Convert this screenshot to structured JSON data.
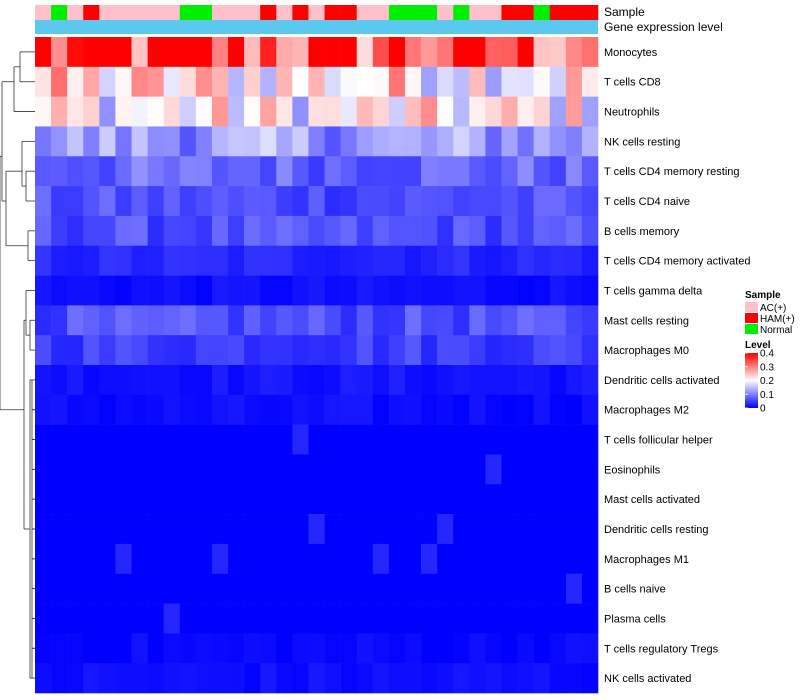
{
  "chart_data": {
    "type": "heatmap",
    "title": "",
    "annotation_labels": [
      "Sample",
      "Gene expression level"
    ],
    "rows": [
      "Monocytes",
      "T cells CD8",
      "Neutrophils",
      "NK cells resting",
      "T cells CD4 memory resting",
      "T cells CD4 naive",
      "B cells memory",
      "T cells CD4 memory activated",
      "T cells gamma delta",
      "Mast cells resting",
      "Macrophages M0",
      "Dendritic cells activated",
      "Macrophages M2",
      "T cells follicular helper",
      "Eosinophils",
      "Mast cells activated",
      "Dendritic cells resting",
      "Macrophages M1",
      "B cells naive",
      "Plasma cells",
      "T cells regulatory  Tregs",
      "NK cells activated"
    ],
    "samples": [
      "AC(+)",
      "Normal",
      "AC(+)",
      "HAM(+)",
      "AC(+)",
      "AC(+)",
      "AC(+)",
      "AC(+)",
      "AC(+)",
      "Normal",
      "Normal",
      "AC(+)",
      "AC(+)",
      "AC(+)",
      "HAM(+)",
      "AC(+)",
      "HAM(+)",
      "AC(+)",
      "HAM(+)",
      "HAM(+)",
      "AC(+)",
      "AC(+)",
      "Normal",
      "Normal",
      "Normal",
      "AC(+)",
      "Normal",
      "AC(+)",
      "AC(+)",
      "HAM(+)",
      "HAM(+)",
      "Normal",
      "HAM(+)",
      "HAM(+)",
      "HAM(+)"
    ],
    "row_means": [
      0.35,
      0.22,
      0.2,
      0.12,
      0.08,
      0.06,
      0.06,
      0.03,
      0.01,
      0.06,
      0.05,
      0.015,
      0.008,
      0.0,
      0.0,
      0.0,
      0.0,
      0.0,
      0.0,
      0.0,
      0.005,
      0.01
    ],
    "colorbar": {
      "title": "Level",
      "range": [
        0,
        0.4
      ],
      "ticks": [
        0.4,
        0.3,
        0.2,
        0.1,
        0
      ],
      "tick_labels": [
        "0.4",
        "0.3",
        "0.2",
        "0.1",
        "0"
      ],
      "low_color": "#0000ff",
      "mid_color": "#ffffff",
      "high_color": "#ff0000",
      "mid_value": 0.2
    },
    "legend": {
      "title": "Sample",
      "entries": [
        {
          "label": "AC(+)",
          "color": "#ffc0cb"
        },
        {
          "label": "HAM(+)",
          "color": "#ff0000"
        },
        {
          "label": "Normal",
          "color": "#00ee00"
        }
      ]
    },
    "expression_bar_color": "#5bc8f0"
  }
}
